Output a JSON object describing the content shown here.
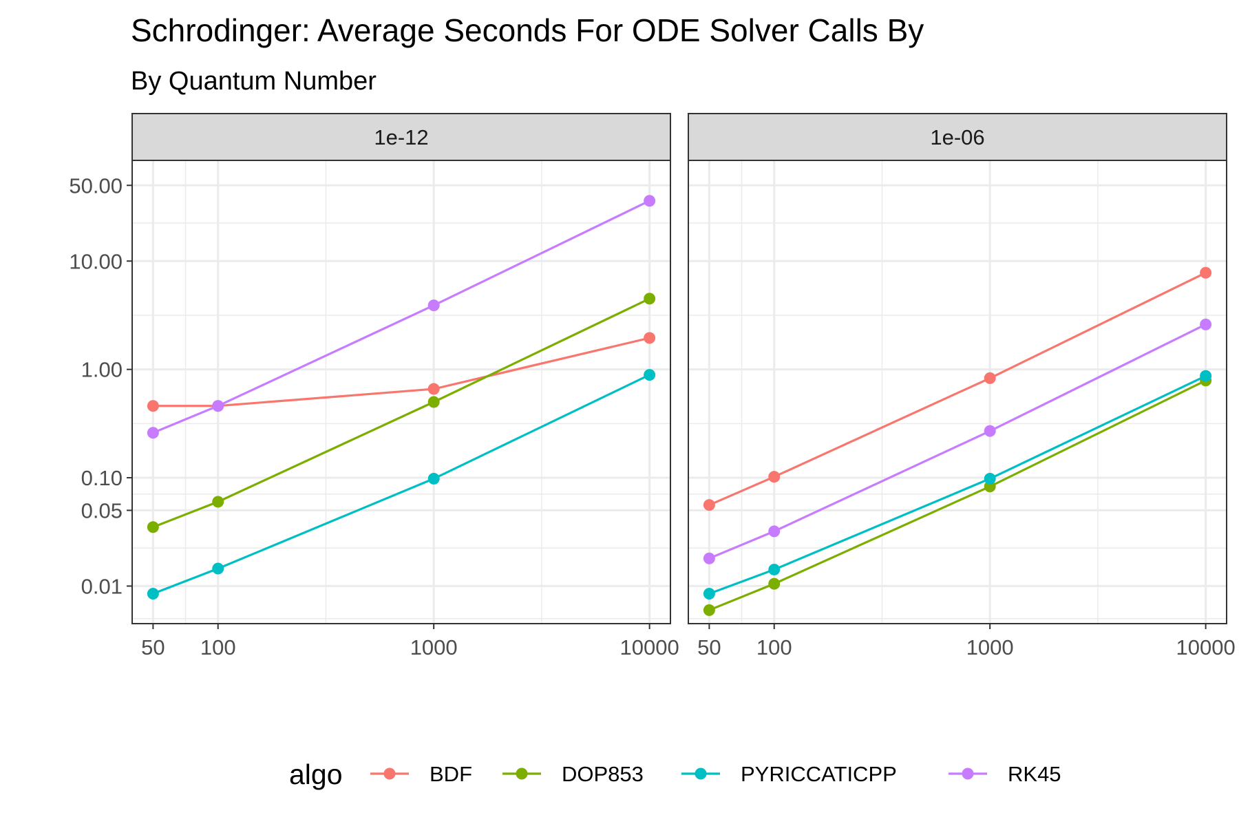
{
  "chart_data": {
    "type": "line",
    "title": "Schrodinger: Average Seconds For ODE Solver Calls By",
    "subtitle": "By Quantum Number",
    "xlabel": "",
    "ylabel": "",
    "x_scale": "log10",
    "y_scale": "log10",
    "x": [
      50,
      100,
      1000,
      10000
    ],
    "x_ticks": [
      "50",
      "100",
      "1000",
      "10000"
    ],
    "y_ticks": [
      "0.01",
      "0.05",
      "0.10",
      "1.00",
      "10.00",
      "50.00"
    ],
    "y_tick_values": [
      0.01,
      0.05,
      0.1,
      1,
      10,
      50
    ],
    "xlim": [
      40,
      12500
    ],
    "ylim": [
      0.0045,
      85
    ],
    "grid": true,
    "legend": {
      "title": "algo",
      "position": "bottom"
    },
    "panels": [
      {
        "label": "1e-12",
        "series": [
          {
            "name": "BDF",
            "values": [
              0.46,
              0.46,
              0.66,
              1.95
            ]
          },
          {
            "name": "DOP853",
            "values": [
              0.035,
              0.06,
              0.5,
              4.5
            ]
          },
          {
            "name": "PYRICCATICPP",
            "values": [
              0.0085,
              0.0145,
              0.098,
              0.89
            ]
          },
          {
            "name": "RK45",
            "values": [
              0.26,
              0.46,
              3.9,
              36
            ]
          }
        ]
      },
      {
        "label": "1e-06",
        "series": [
          {
            "name": "BDF",
            "values": [
              0.056,
              0.102,
              0.83,
              7.8
            ]
          },
          {
            "name": "DOP853",
            "values": [
              0.006,
              0.0105,
              0.083,
              0.79
            ]
          },
          {
            "name": "PYRICCATICPP",
            "values": [
              0.0085,
              0.0142,
              0.098,
              0.87
            ]
          },
          {
            "name": "RK45",
            "values": [
              0.018,
              0.032,
              0.27,
              2.6
            ]
          }
        ]
      }
    ],
    "colors": {
      "BDF": "#F8766D",
      "DOP853": "#7CAE00",
      "PYRICCATICPP": "#00BFC4",
      "RK45": "#C77CFF"
    }
  }
}
